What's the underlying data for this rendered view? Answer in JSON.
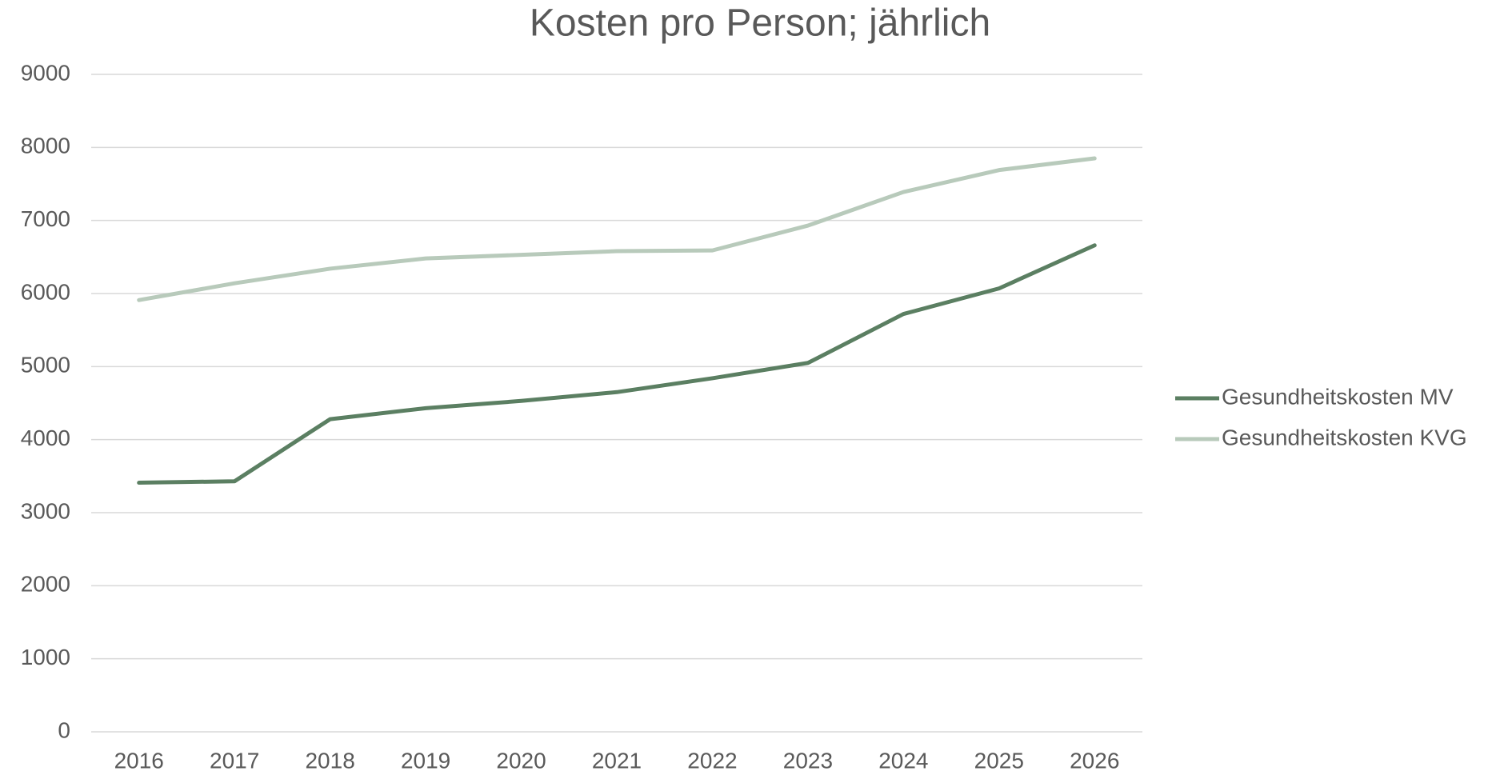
{
  "chart_data": {
    "type": "line",
    "title": "Kosten pro Person; jährlich",
    "categories": [
      "2016",
      "2017",
      "2018",
      "2019",
      "2020",
      "2021",
      "2022",
      "2023",
      "2024",
      "2025",
      "2026"
    ],
    "series": [
      {
        "name": "Gesundheitskosten MV",
        "color": "#5b7f62",
        "values": [
          3410,
          3430,
          4280,
          4430,
          4530,
          4650,
          4840,
          5050,
          5720,
          6070,
          6660
        ]
      },
      {
        "name": "Gesundheitskosten KVG",
        "color": "#b8cabb",
        "values": [
          5910,
          6140,
          6340,
          6480,
          6530,
          6580,
          6590,
          6930,
          7390,
          7690,
          7850
        ]
      }
    ],
    "ylim": [
      0,
      9000
    ],
    "yticks": [
      0,
      1000,
      2000,
      3000,
      4000,
      5000,
      6000,
      7000,
      8000,
      9000
    ],
    "grid": true,
    "legend": "right"
  }
}
